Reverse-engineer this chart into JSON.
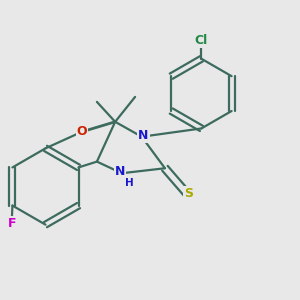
{
  "background_color": "#e8e8e8",
  "bond_color": "#3d6b5e",
  "atom_colors": {
    "O": "#cc2200",
    "N": "#1a1acc",
    "S": "#aaaa00",
    "F": "#cc00cc",
    "Cl": "#228844",
    "H": "#1a1acc"
  },
  "bond_width": 1.6,
  "figsize": [
    3.0,
    3.0
  ],
  "dpi": 100
}
